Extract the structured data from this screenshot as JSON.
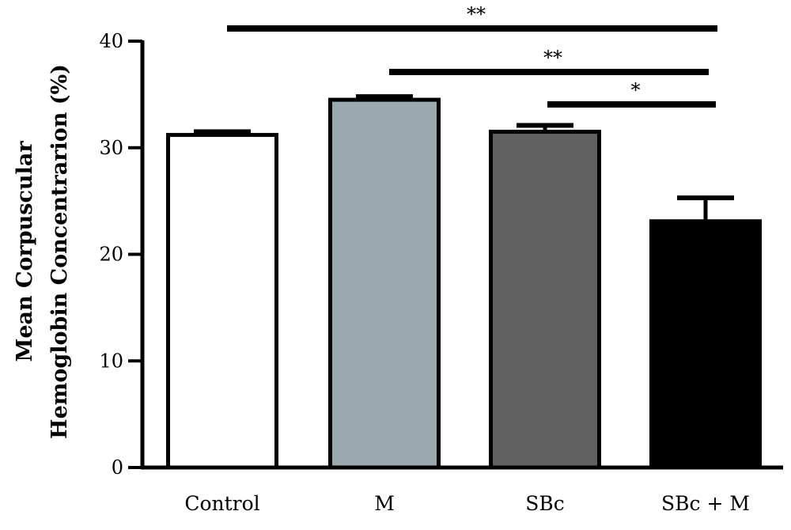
{
  "chart_data": {
    "type": "bar",
    "categories": [
      "Control",
      "M",
      "SBc",
      "SBc + M"
    ],
    "values": [
      31.2,
      34.5,
      31.5,
      23.1
    ],
    "errors": [
      0.3,
      0.3,
      0.6,
      2.2
    ],
    "colors": [
      "#ffffff",
      "#9aa9ae",
      "#606060",
      "#000000"
    ],
    "ylabel_line1": "Mean Corpuscular",
    "ylabel_line2": "Hemoglobin Concentrarion (%)",
    "ylim": [
      0,
      40
    ],
    "yticks": [
      0,
      10,
      20,
      30,
      40
    ],
    "grid": false,
    "significance": [
      {
        "from": 0,
        "to": 3,
        "label": "**"
      },
      {
        "from": 1,
        "to": 3,
        "label": "**"
      },
      {
        "from": 2,
        "to": 3,
        "label": "*"
      }
    ]
  }
}
